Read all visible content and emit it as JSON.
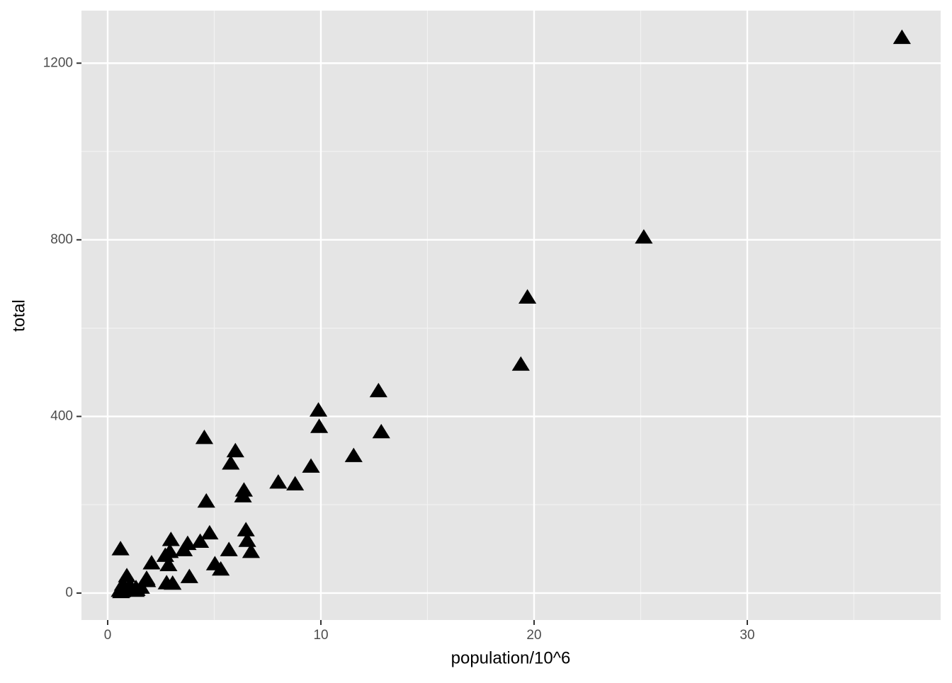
{
  "chart_data": {
    "type": "scatter",
    "x_label": "population/10^6",
    "y_label": "total",
    "x": [
      4.78,
      0.71,
      6.392,
      2.916,
      37.254,
      5.029,
      3.574,
      0.898,
      0.602,
      19.688,
      9.92,
      1.36,
      1.568,
      12.831,
      6.484,
      3.046,
      2.853,
      4.339,
      4.533,
      1.328,
      5.774,
      6.548,
      9.884,
      5.304,
      2.967,
      5.989,
      0.989,
      1.826,
      2.701,
      1.316,
      8.792,
      2.059,
      19.378,
      9.535,
      0.673,
      11.537,
      3.751,
      3.831,
      12.702,
      1.053,
      4.625,
      0.814,
      6.346,
      25.146,
      2.764,
      0.626,
      8.001,
      6.725,
      1.853,
      5.687,
      0.564
    ],
    "values": [
      135,
      19,
      232,
      93,
      1257,
      65,
      97,
      38,
      99,
      669,
      376,
      7,
      12,
      364,
      142,
      21,
      63,
      116,
      351,
      11,
      293,
      118,
      413,
      53,
      120,
      321,
      12,
      32,
      84,
      5,
      246,
      67,
      517,
      286,
      4,
      310,
      111,
      36,
      457,
      16,
      207,
      8,
      219,
      805,
      22,
      2,
      250,
      93,
      27,
      97,
      5
    ],
    "color": "#000000",
    "marker": "triangle",
    "xlim": [
      -1.23,
      39.07
    ],
    "ylim": [
      -61,
      1319
    ],
    "xticks": [
      0,
      10,
      20,
      30
    ],
    "yticks": [
      0,
      400,
      800,
      1200
    ],
    "x_minor_grid": [
      5,
      15,
      25,
      35
    ],
    "y_minor_grid": [
      200,
      600,
      1000
    ],
    "grid": true
  }
}
